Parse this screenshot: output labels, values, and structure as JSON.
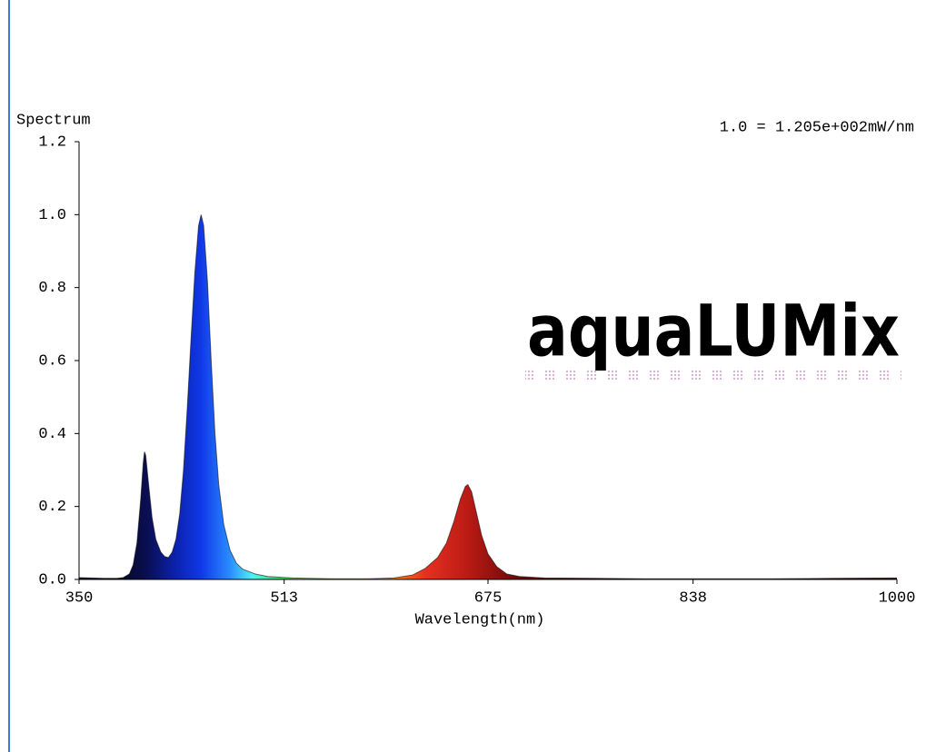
{
  "chart_data": {
    "type": "spectrum",
    "ylabel": "Spectrum",
    "xlabel": "Wavelength(nm)",
    "annotation": "1.0 = 1.205e+002mW/nm",
    "watermark": "aquaLUMix",
    "xlim": [
      350,
      1000
    ],
    "xticks": [
      350,
      513,
      675,
      838,
      1000
    ],
    "ylim": [
      0,
      1.2
    ],
    "yticks": [
      {
        "value": 0,
        "label": "0.0"
      },
      0.2,
      0.4,
      0.6,
      0.8,
      {
        "value": 1,
        "label": "1.0"
      },
      1.2
    ],
    "x": [
      350,
      360,
      370,
      380,
      385,
      390,
      393,
      396,
      399,
      401,
      402,
      403,
      405,
      408,
      411,
      415,
      418,
      421,
      424,
      427,
      430,
      433,
      436,
      439,
      442,
      445,
      447,
      449,
      452,
      455,
      458,
      461,
      465,
      470,
      475,
      480,
      490,
      500,
      520,
      550,
      580,
      600,
      615,
      625,
      635,
      642,
      648,
      653,
      657,
      659,
      662,
      666,
      670,
      675,
      682,
      690,
      700,
      720,
      760,
      800,
      850,
      900,
      950,
      1000
    ],
    "values": [
      0.005,
      0.004,
      0.003,
      0.003,
      0.005,
      0.015,
      0.04,
      0.1,
      0.22,
      0.32,
      0.35,
      0.34,
      0.27,
      0.17,
      0.11,
      0.075,
      0.063,
      0.06,
      0.075,
      0.11,
      0.18,
      0.3,
      0.47,
      0.66,
      0.84,
      0.97,
      1.0,
      0.97,
      0.82,
      0.6,
      0.4,
      0.26,
      0.15,
      0.08,
      0.045,
      0.028,
      0.015,
      0.008,
      0.004,
      0.002,
      0.002,
      0.004,
      0.012,
      0.03,
      0.06,
      0.1,
      0.16,
      0.22,
      0.255,
      0.26,
      0.24,
      0.18,
      0.12,
      0.07,
      0.035,
      0.015,
      0.008,
      0.004,
      0.003,
      0.002,
      0.002,
      0.002,
      0.003,
      0.004
    ]
  }
}
